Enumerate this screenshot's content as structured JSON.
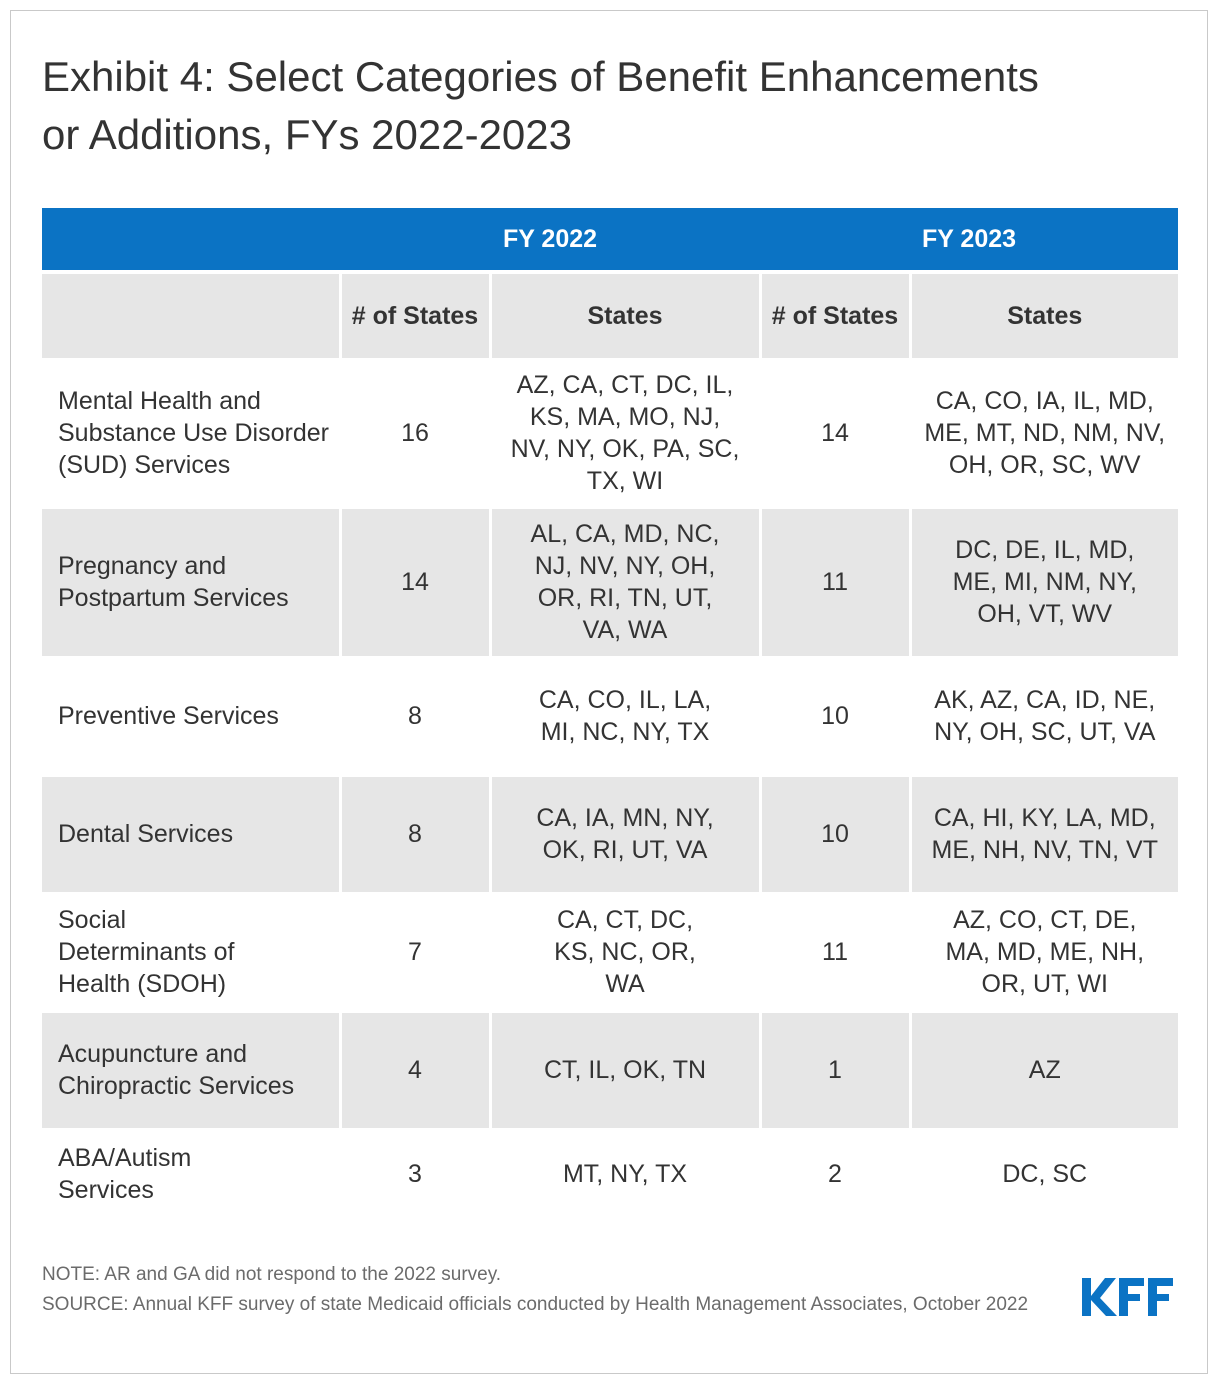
{
  "title": "Exhibit 4: Select Categories of Benefit Enhancements or Additions, FYs 2022-2023",
  "table": {
    "groups": {
      "fy2022": "FY 2022",
      "fy2023": "FY 2023"
    },
    "subheaders": {
      "num_states": "# of States",
      "states": "States"
    },
    "rows": [
      {
        "category": "Mental Health and Substance Use Disorder (SUD) Services",
        "fy2022_count": "16",
        "fy2022_states": "AZ, CA, CT, DC, IL, KS, MA, MO, NJ, NV, NY, OK, PA, SC, TX, WI",
        "fy2023_count": "14",
        "fy2023_states": "CA, CO, IA, IL, MD, ME, MT, ND, NM, NV, OH, OR, SC, WV"
      },
      {
        "category": "Pregnancy and Postpartum Services",
        "fy2022_count": "14",
        "fy2022_states": "AL, CA, MD, NC, NJ, NV, NY, OH, OR, RI, TN, UT, VA, WA",
        "fy2023_count": "11",
        "fy2023_states": "DC, DE, IL, MD, ME, MI, NM, NY, OH, VT, WV"
      },
      {
        "category": "Preventive Services",
        "fy2022_count": "8",
        "fy2022_states": "CA, CO, IL, LA, MI, NC, NY, TX",
        "fy2023_count": "10",
        "fy2023_states": "AK, AZ, CA, ID, NE, NY, OH, SC, UT, VA"
      },
      {
        "category": "Dental Services",
        "fy2022_count": "8",
        "fy2022_states": "CA, IA, MN, NY, OK, RI, UT, VA",
        "fy2023_count": "10",
        "fy2023_states": "CA, HI, KY, LA, MD, ME, NH, NV, TN, VT"
      },
      {
        "category": "Social Determinants of Health (SDOH)",
        "fy2022_count": "7",
        "fy2022_states": "CA, CT, DC, KS, NC, OR, WA",
        "fy2023_count": "11",
        "fy2023_states": "AZ, CO, CT, DE, MA, MD, ME, NH, OR, UT, WI"
      },
      {
        "category": "Acupuncture and Chiropractic Services",
        "fy2022_count": "4",
        "fy2022_states": "CT, IL, OK, TN",
        "fy2023_count": "1",
        "fy2023_states": "AZ"
      },
      {
        "category": "ABA/Autism Services",
        "fy2022_count": "3",
        "fy2022_states": "MT, NY, TX",
        "fy2023_count": "2",
        "fy2023_states": "DC, SC"
      }
    ]
  },
  "notes": {
    "note": "NOTE: AR and GA did not respond to the 2022 survey.",
    "source": "SOURCE: Annual KFF survey of state Medicaid officials conducted by Health Management Associates, October 2022"
  },
  "logo": {
    "text": "KFF",
    "icon": "kff-logo",
    "color": "#0b73c4"
  },
  "colors": {
    "header_band": "#0b73c4",
    "row_shade": "#e6e6e6",
    "text": "#333333"
  }
}
